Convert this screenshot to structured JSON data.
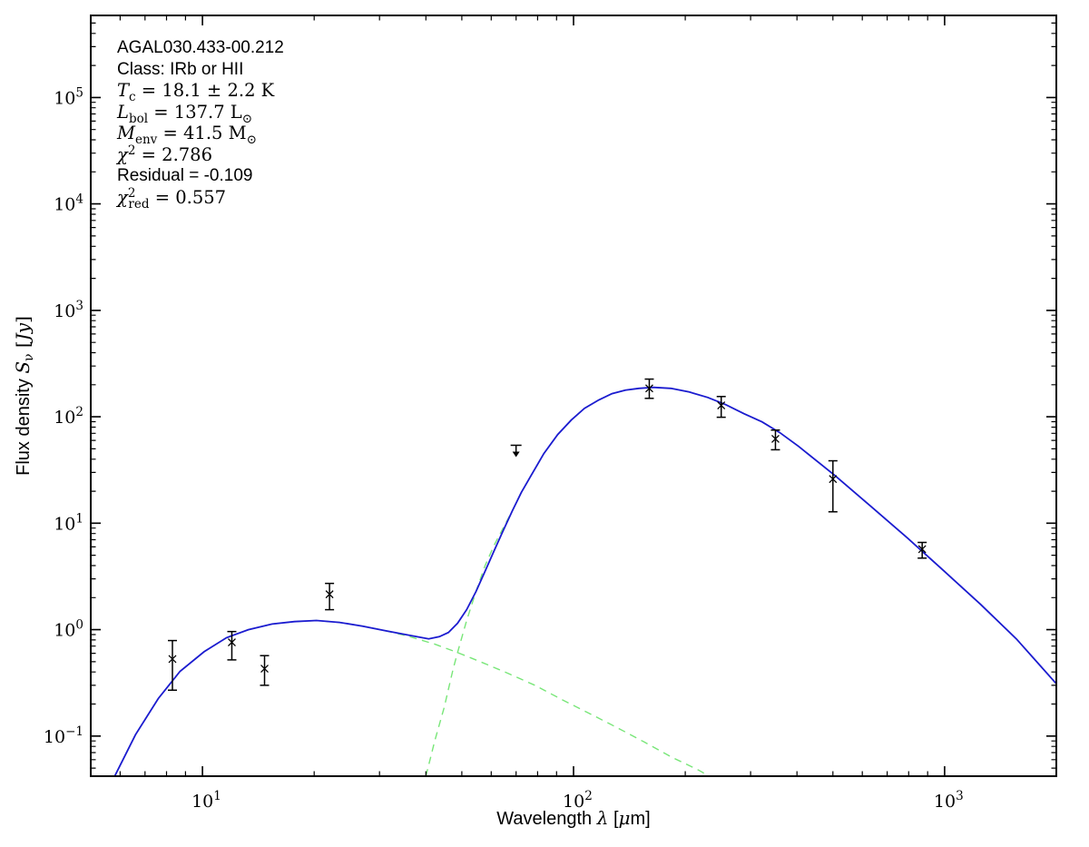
{
  "figure": {
    "background": "#ffffff",
    "annotation_lines": [
      {
        "name": "source-name",
        "segments": [
          {
            "s": "sans",
            "t": "AGAL030.433-00.212"
          }
        ]
      },
      {
        "name": "class-line",
        "segments": [
          {
            "s": "sans",
            "t": "Class: IRb or HII"
          }
        ]
      },
      {
        "name": "tc-line",
        "segments": [
          {
            "s": "mi",
            "t": "T"
          },
          {
            "s": "sub",
            "t": "c"
          },
          {
            "s": "mr",
            "t": " = 18.1 ± 2.2 K"
          }
        ]
      },
      {
        "name": "lbol-line",
        "segments": [
          {
            "s": "mi",
            "t": "L"
          },
          {
            "s": "sub",
            "t": "bol"
          },
          {
            "s": "mr",
            "t": " = 137.7 L"
          },
          {
            "s": "sub",
            "t": "⊙"
          }
        ]
      },
      {
        "name": "menv-line",
        "segments": [
          {
            "s": "mi",
            "t": "M"
          },
          {
            "s": "sub",
            "t": "env"
          },
          {
            "s": "mr",
            "t": " = 41.5 M"
          },
          {
            "s": "sub",
            "t": "⊙"
          }
        ]
      },
      {
        "name": "chi2-line",
        "segments": [
          {
            "s": "mi",
            "t": "χ"
          },
          {
            "s": "sup",
            "t": "2"
          },
          {
            "s": "mr",
            "t": " = 2.786"
          }
        ]
      },
      {
        "name": "residual-line",
        "segments": [
          {
            "s": "sans",
            "t": "Residual = -0.109"
          }
        ]
      },
      {
        "name": "chi2red-line",
        "segments": [
          {
            "s": "mi",
            "t": "χ"
          },
          {
            "s": "sup",
            "t": "2"
          },
          {
            "s": "sub",
            "t": "red"
          },
          {
            "s": "mr",
            "t": " = 0.557"
          }
        ]
      }
    ],
    "xlabel_segments": [
      {
        "s": "sans",
        "t": "Wavelength "
      },
      {
        "s": "mi",
        "t": "λ"
      },
      {
        "s": "sans",
        "t": " ["
      },
      {
        "s": "mi",
        "t": "μ"
      },
      {
        "s": "sans",
        "t": "m]"
      }
    ],
    "ylabel_segments": [
      {
        "s": "sans",
        "t": "Flux density "
      },
      {
        "s": "mi",
        "t": "S"
      },
      {
        "s": "sub",
        "t": "ν"
      },
      {
        "s": "mr",
        "t": " ["
      },
      {
        "s": "mi",
        "t": "Jy"
      },
      {
        "s": "mr",
        "t": "]"
      }
    ]
  },
  "chart_data": {
    "type": "line",
    "description": "Spectral energy distribution fit: two-component greybody model (green dashed components, blue total) with photometric data points and one 70 um upper limit",
    "x_scale": "log",
    "y_scale": "log",
    "xlim": [
      5,
      2000
    ],
    "ylim": [
      0.042,
      590000
    ],
    "x_major_ticks": [
      10,
      100,
      1000
    ],
    "y_major_ticks": [
      0.1,
      1,
      10,
      100,
      1000,
      10000,
      100000
    ],
    "grid": false,
    "legend": false,
    "series": [
      {
        "name": "warm-component",
        "color": "#78e678",
        "style": "dashed",
        "points": [
          [
            5.8,
            0.042
          ],
          [
            6.6,
            0.103
          ],
          [
            7.6,
            0.225
          ],
          [
            8.7,
            0.406
          ],
          [
            10.1,
            0.62
          ],
          [
            11.6,
            0.84
          ],
          [
            13.3,
            1.0
          ],
          [
            15.4,
            1.13
          ],
          [
            17.7,
            1.19
          ],
          [
            20.3,
            1.22
          ],
          [
            23.4,
            1.17
          ],
          [
            27.0,
            1.08
          ],
          [
            31.0,
            0.98
          ],
          [
            35.8,
            0.87
          ],
          [
            42.3,
            0.73
          ],
          [
            48.7,
            0.61
          ],
          [
            56.1,
            0.5
          ],
          [
            66.4,
            0.39
          ],
          [
            78.7,
            0.3
          ],
          [
            93.1,
            0.22
          ],
          [
            110,
            0.164
          ],
          [
            131,
            0.12
          ],
          [
            155,
            0.088
          ],
          [
            183,
            0.064
          ],
          [
            217,
            0.048
          ],
          [
            232,
            0.042
          ]
        ]
      },
      {
        "name": "cold-component",
        "color": "#78e678",
        "style": "dashed",
        "points": [
          [
            40.0,
            0.042
          ],
          [
            42.3,
            0.091
          ],
          [
            44.8,
            0.185
          ],
          [
            47.4,
            0.43
          ],
          [
            48.7,
            0.61
          ],
          [
            51.5,
            1.22
          ],
          [
            54.6,
            2.28
          ],
          [
            57.7,
            3.95
          ],
          [
            61.1,
            6.21
          ],
          [
            64.6,
            9.01
          ],
          [
            68.4,
            13.1
          ],
          [
            72.3,
            19.4
          ],
          [
            76.6,
            27.6
          ],
          [
            83.2,
            45.1
          ],
          [
            90.6,
            68.1
          ],
          [
            98.6,
            93.2
          ],
          [
            107,
            120
          ],
          [
            117,
            144
          ],
          [
            127,
            165
          ],
          [
            138,
            178
          ],
          [
            150,
            185
          ],
          [
            164,
            189
          ],
          [
            183,
            185
          ],
          [
            205,
            171
          ],
          [
            230,
            152
          ],
          [
            257,
            130
          ],
          [
            288,
            107
          ],
          [
            322,
            89.6
          ],
          [
            360,
            70.8
          ],
          [
            404,
            52.7
          ],
          [
            506,
            28.1
          ],
          [
            633,
            14.4
          ],
          [
            794,
            7.26
          ],
          [
            994,
            3.58
          ],
          [
            1250,
            1.73
          ],
          [
            1560,
            0.82
          ],
          [
            2000,
            0.31
          ]
        ]
      },
      {
        "name": "model-total",
        "color": "#1b1bd0",
        "style": "solid",
        "points": [
          [
            5.8,
            0.042
          ],
          [
            6.6,
            0.103
          ],
          [
            7.6,
            0.225
          ],
          [
            8.7,
            0.406
          ],
          [
            10.1,
            0.62
          ],
          [
            11.6,
            0.84
          ],
          [
            13.3,
            1.0
          ],
          [
            15.4,
            1.13
          ],
          [
            17.7,
            1.19
          ],
          [
            20.3,
            1.22
          ],
          [
            23.4,
            1.17
          ],
          [
            27.0,
            1.08
          ],
          [
            31.0,
            0.98
          ],
          [
            35.8,
            0.89
          ],
          [
            40.7,
            0.82
          ],
          [
            43.5,
            0.86
          ],
          [
            46.0,
            0.94
          ],
          [
            48.7,
            1.15
          ],
          [
            51.5,
            1.54
          ],
          [
            54.6,
            2.28
          ],
          [
            57.7,
            3.51
          ],
          [
            61.1,
            5.52
          ],
          [
            64.6,
            8.5
          ],
          [
            68.4,
            13.1
          ],
          [
            72.3,
            19.4
          ],
          [
            76.6,
            27.6
          ],
          [
            83.2,
            45.1
          ],
          [
            90.6,
            68.1
          ],
          [
            98.6,
            93.2
          ],
          [
            107,
            120
          ],
          [
            117,
            144
          ],
          [
            127,
            165
          ],
          [
            138,
            178
          ],
          [
            150,
            185
          ],
          [
            164,
            189
          ],
          [
            183,
            185
          ],
          [
            205,
            171
          ],
          [
            230,
            152
          ],
          [
            257,
            130
          ],
          [
            288,
            107
          ],
          [
            322,
            89.6
          ],
          [
            360,
            70.8
          ],
          [
            404,
            52.7
          ],
          [
            506,
            28.1
          ],
          [
            633,
            14.4
          ],
          [
            794,
            7.26
          ],
          [
            994,
            3.58
          ],
          [
            1250,
            1.73
          ],
          [
            1560,
            0.82
          ],
          [
            2000,
            0.31
          ]
        ]
      }
    ],
    "data_points": [
      {
        "wavelength_um": 8.3,
        "flux_jy": 0.53,
        "flux_lo": 0.27,
        "flux_hi": 0.79
      },
      {
        "wavelength_um": 12.0,
        "flux_jy": 0.76,
        "flux_lo": 0.52,
        "flux_hi": 0.96
      },
      {
        "wavelength_um": 14.7,
        "flux_jy": 0.43,
        "flux_lo": 0.3,
        "flux_hi": 0.57
      },
      {
        "wavelength_um": 22.0,
        "flux_jy": 2.15,
        "flux_lo": 1.54,
        "flux_hi": 2.72
      },
      {
        "wavelength_um": 160,
        "flux_jy": 185,
        "flux_lo": 149,
        "flux_hi": 226
      },
      {
        "wavelength_um": 250,
        "flux_jy": 128,
        "flux_lo": 99,
        "flux_hi": 155
      },
      {
        "wavelength_um": 350,
        "flux_jy": 62,
        "flux_lo": 49,
        "flux_hi": 75
      },
      {
        "wavelength_um": 500,
        "flux_jy": 26,
        "flux_lo": 12.8,
        "flux_hi": 38.6
      },
      {
        "wavelength_um": 870,
        "flux_jy": 5.7,
        "flux_lo": 4.7,
        "flux_hi": 6.6
      }
    ],
    "upper_limits": [
      {
        "wavelength_um": 70,
        "flux_jy": 54
      }
    ],
    "marker": "x",
    "data_color": "#000000"
  }
}
